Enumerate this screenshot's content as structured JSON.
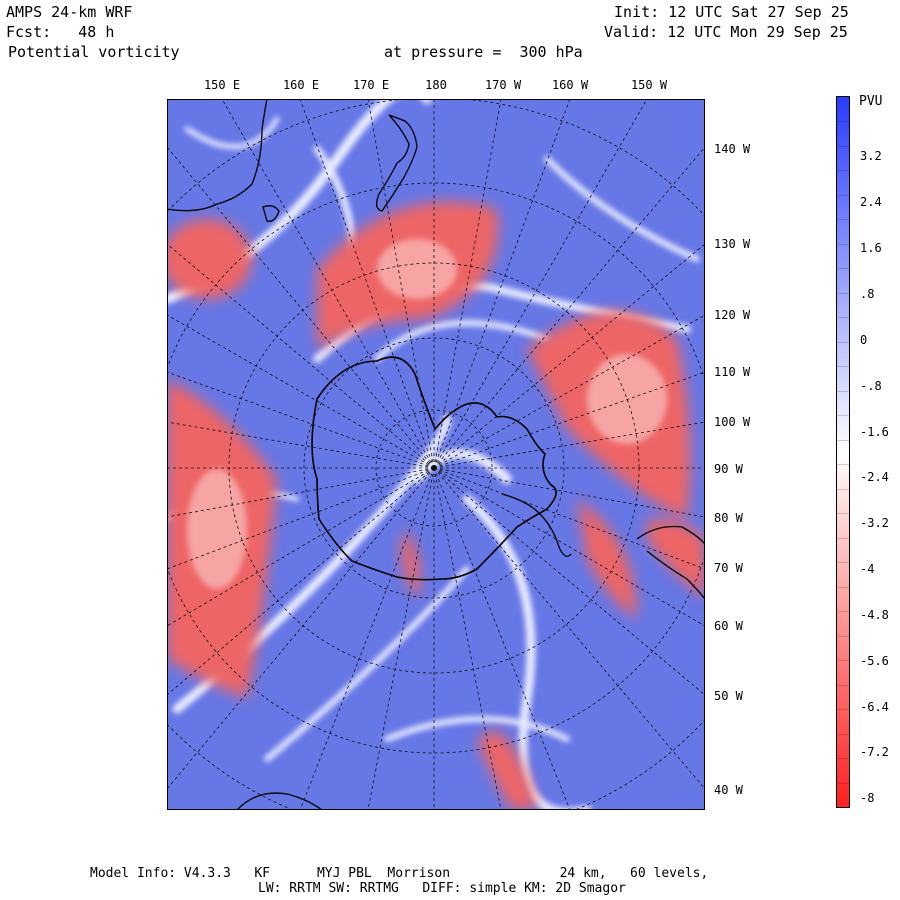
{
  "header": {
    "model": "AMPS 24-km WRF",
    "forecast": "Fcst:   48 h",
    "field": "Potential vorticity",
    "pressure": "at pressure =  300 hPa",
    "init": "Init: 12 UTC Sat 27 Sep 25",
    "valid": "Valid: 12 UTC Mon 29 Sep 25"
  },
  "lon_labels": [
    "150 E",
    "160 E",
    "170 E",
    "180",
    "170 W",
    "160 W",
    "150 W"
  ],
  "lat_labels": [
    "140 W",
    "130 W",
    "120 W",
    "110 W",
    "100 W",
    "90 W",
    "80 W",
    "70 W",
    "60 W",
    "50 W",
    "40 W"
  ],
  "colorbar": {
    "unit": "PVU",
    "ticks": [
      "3.2",
      "2.4",
      "1.6",
      ".8",
      "0",
      "-.8",
      "-1.6",
      "-2.4",
      "-3.2",
      "-4",
      "-4.8",
      "-5.6",
      "-6.4",
      "-7.2",
      "-8"
    ],
    "colors": {
      "positive": "#2a3cff",
      "neutral": "#ffffff",
      "negative": "#ff2020",
      "field_blue": "#6677e6",
      "field_red": "#ee6565"
    }
  },
  "footer": {
    "line1": "Model Info: V4.3.3   KF      MYJ PBL  Morrison              24 km,   60 levels,",
    "line2": "LW: RRTM SW: RRTMG   DIFF: simple KM: 2D Smagor"
  }
}
